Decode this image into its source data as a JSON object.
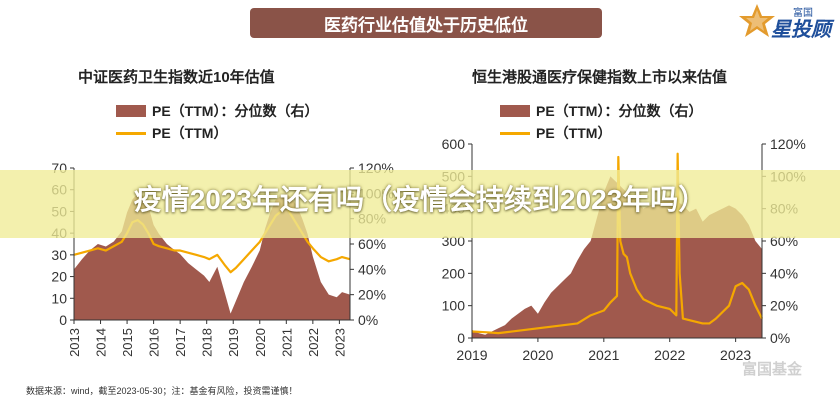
{
  "banner": {
    "title": "医药行业估值处于历史低位"
  },
  "logo": {
    "top": "富国",
    "main": "星投顾",
    "icon": "star-logo-icon"
  },
  "headline": "疫情2023年还有吗（疫情会持续到2023年吗）",
  "source": "数据来源：wind，截至2023-05-30；注：基金有风险，投资需谨慎！",
  "watermark": "富国基金",
  "colors": {
    "area": "#a0594d",
    "line": "#f5a800",
    "banner": "#8a5348"
  },
  "chart_data": [
    {
      "type": "area",
      "title": "中证医药卫生指数近10年估值",
      "legend": [
        "PE（TTM）：分位数（右）",
        "PE（TTM）"
      ],
      "x_ticks": [
        "2013",
        "2014",
        "2015",
        "2016",
        "2017",
        "2018",
        "2019",
        "2020",
        "2021",
        "2022",
        "2023"
      ],
      "x_range": [
        2013,
        2023.4
      ],
      "y_left_ticks": [
        "0",
        "10",
        "20",
        "30",
        "40",
        "50",
        "60",
        "70"
      ],
      "y_left_range": [
        0,
        70
      ],
      "y_right_ticks": [
        "0%",
        "20%",
        "40%",
        "60%",
        "80%",
        "100%",
        "120%"
      ],
      "y_right_range": [
        0,
        120
      ],
      "series": [
        {
          "name": "PE（TTM）：分位数（右）",
          "axis": "right",
          "x": [
            2013,
            2013.3,
            2013.6,
            2013.9,
            2014.2,
            2014.5,
            2014.8,
            2015.0,
            2015.2,
            2015.4,
            2015.6,
            2015.8,
            2016.0,
            2016.2,
            2016.5,
            2016.8,
            2017.0,
            2017.3,
            2017.6,
            2017.9,
            2018.1,
            2018.4,
            2018.7,
            2018.9,
            2019.1,
            2019.4,
            2019.7,
            2020.0,
            2020.2,
            2020.4,
            2020.6,
            2020.8,
            2021.0,
            2021.2,
            2021.4,
            2021.6,
            2021.8,
            2022.0,
            2022.3,
            2022.6,
            2022.9,
            2023.1,
            2023.4
          ],
          "values": [
            40,
            48,
            55,
            60,
            58,
            62,
            70,
            85,
            95,
            100,
            98,
            90,
            75,
            68,
            60,
            55,
            52,
            45,
            40,
            35,
            30,
            42,
            20,
            5,
            15,
            30,
            42,
            55,
            72,
            85,
            95,
            98,
            100,
            96,
            90,
            80,
            68,
            50,
            30,
            20,
            18,
            22,
            20
          ]
        },
        {
          "name": "PE（TTM）",
          "axis": "left",
          "x": [
            2013,
            2013.3,
            2013.6,
            2013.9,
            2014.2,
            2014.5,
            2014.8,
            2015.0,
            2015.2,
            2015.4,
            2015.6,
            2015.8,
            2016.0,
            2016.2,
            2016.5,
            2016.8,
            2017.0,
            2017.3,
            2017.6,
            2017.9,
            2018.1,
            2018.4,
            2018.7,
            2018.9,
            2019.1,
            2019.4,
            2019.7,
            2020.0,
            2020.2,
            2020.4,
            2020.6,
            2020.8,
            2021.0,
            2021.2,
            2021.4,
            2021.6,
            2021.8,
            2022.0,
            2022.3,
            2022.6,
            2022.9,
            2023.1,
            2023.4
          ],
          "values": [
            30,
            31,
            32,
            33,
            32,
            34,
            36,
            40,
            45,
            46,
            44,
            40,
            35,
            34,
            33,
            32,
            32,
            31,
            30,
            29,
            28,
            30,
            25,
            22,
            24,
            28,
            32,
            36,
            40,
            44,
            48,
            50,
            52,
            48,
            44,
            40,
            36,
            33,
            29,
            27,
            28,
            29,
            28
          ]
        }
      ]
    },
    {
      "type": "area",
      "title": "恒生港股通医疗保健指数上市以来估值",
      "legend": [
        "PE（TTM）：分位数（右）",
        "PE（TTM）"
      ],
      "x_ticks": [
        "2019",
        "2020",
        "2021",
        "2022",
        "2023"
      ],
      "x_range": [
        2019,
        2023.4
      ],
      "y_left_ticks": [
        "0",
        "100",
        "200",
        "300",
        "400",
        "500",
        "600"
      ],
      "y_left_range": [
        0,
        600
      ],
      "y_right_ticks": [
        "0%",
        "20%",
        "40%",
        "60%",
        "80%",
        "100%",
        "120%"
      ],
      "y_right_range": [
        0,
        120
      ],
      "series": [
        {
          "name": "PE（TTM）：分位数（右）",
          "axis": "right",
          "x": [
            2019,
            2019.1,
            2019.2,
            2019.3,
            2019.4,
            2019.5,
            2019.6,
            2019.7,
            2019.8,
            2019.9,
            2020.0,
            2020.1,
            2020.2,
            2020.3,
            2020.4,
            2020.5,
            2020.6,
            2020.7,
            2020.8,
            2020.9,
            2021.0,
            2021.1,
            2021.2,
            2021.3,
            2021.4,
            2021.5,
            2021.6,
            2021.7,
            2021.8,
            2021.9,
            2022.0,
            2022.1,
            2022.2,
            2022.3,
            2022.4,
            2022.5,
            2022.6,
            2022.7,
            2022.8,
            2022.9,
            2023.0,
            2023.1,
            2023.2,
            2023.3,
            2023.4
          ],
          "values": [
            5,
            3,
            2,
            4,
            6,
            8,
            12,
            15,
            18,
            20,
            15,
            22,
            28,
            32,
            36,
            40,
            48,
            55,
            60,
            75,
            90,
            100,
            96,
            92,
            88,
            85,
            80,
            82,
            84,
            86,
            88,
            85,
            82,
            78,
            80,
            72,
            76,
            78,
            80,
            82,
            80,
            76,
            70,
            60,
            55
          ]
        },
        {
          "name": "PE（TTM）",
          "axis": "left",
          "x": [
            2019,
            2019.2,
            2019.4,
            2019.6,
            2019.8,
            2020.0,
            2020.2,
            2020.4,
            2020.6,
            2020.8,
            2021.0,
            2021.1,
            2021.2,
            2021.22,
            2021.25,
            2021.3,
            2021.35,
            2021.4,
            2021.5,
            2021.6,
            2021.8,
            2022.0,
            2022.05,
            2022.1,
            2022.12,
            2022.15,
            2022.2,
            2022.3,
            2022.4,
            2022.5,
            2022.6,
            2022.7,
            2022.8,
            2022.9,
            2023.0,
            2023.1,
            2023.2,
            2023.3,
            2023.4
          ],
          "values": [
            20,
            18,
            15,
            20,
            25,
            30,
            35,
            40,
            45,
            70,
            85,
            110,
            130,
            560,
            300,
            260,
            250,
            200,
            150,
            120,
            100,
            90,
            80,
            70,
            570,
            200,
            60,
            55,
            50,
            45,
            45,
            60,
            80,
            100,
            160,
            170,
            150,
            100,
            60
          ]
        }
      ]
    }
  ]
}
